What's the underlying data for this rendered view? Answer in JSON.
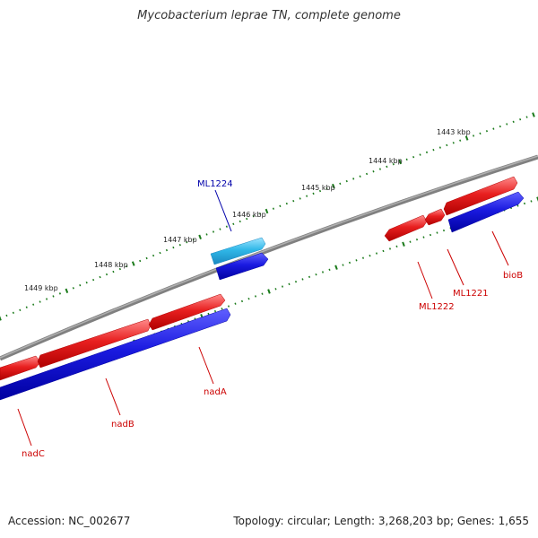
{
  "title": "Mycobacterium leprae TN, complete genome",
  "footer": {
    "accession": "Accession: NC_002677",
    "summary": "Topology: circular; Length: 3,268,203 bp; Genes: 1,655"
  },
  "ticks": [
    {
      "label": "1443 kbp"
    },
    {
      "label": "1444 kbp"
    },
    {
      "label": "1445 kbp"
    },
    {
      "label": "1446 kbp"
    },
    {
      "label": "1447 kbp"
    },
    {
      "label": "1448 kbp"
    },
    {
      "label": "1449 kbp"
    }
  ],
  "genes": {
    "ML1224": "ML1224",
    "nadC": "nadC",
    "nadB": "nadB",
    "nadA": "nadA",
    "ML1222": "ML1222",
    "ML1221": "ML1221",
    "bioB": "bioB"
  },
  "colors": {
    "cds": "#e02020",
    "gene": "#1010cc",
    "selected_cds": "#30b8e8",
    "backbone": "#808080",
    "ticks": "#1a7a1a",
    "blue_label": "#0000aa",
    "red_label": "#cc0000"
  }
}
